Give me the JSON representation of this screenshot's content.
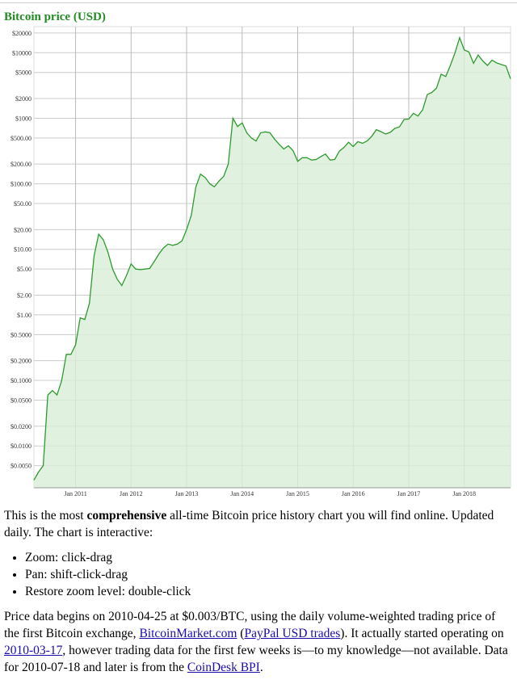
{
  "chart_data": {
    "type": "area",
    "title": "Bitcoin price (USD)",
    "color": "#2e9b2e",
    "fill": "#d8eed8",
    "log_scale": true,
    "grid": true,
    "x": [
      "2010-04",
      "2010-05",
      "2010-06",
      "2010-07",
      "2010-08",
      "2010-09",
      "2010-10",
      "2010-11",
      "2010-12",
      "2011-01",
      "2011-02",
      "2011-03",
      "2011-04",
      "2011-05",
      "2011-06",
      "2011-07",
      "2011-08",
      "2011-09",
      "2011-10",
      "2011-11",
      "2011-12",
      "2012-01",
      "2012-02",
      "2012-03",
      "2012-04",
      "2012-05",
      "2012-06",
      "2012-07",
      "2012-08",
      "2012-09",
      "2012-10",
      "2012-11",
      "2012-12",
      "2013-01",
      "2013-02",
      "2013-03",
      "2013-04",
      "2013-05",
      "2013-06",
      "2013-07",
      "2013-08",
      "2013-09",
      "2013-10",
      "2013-11",
      "2013-12",
      "2014-01",
      "2014-02",
      "2014-03",
      "2014-04",
      "2014-05",
      "2014-06",
      "2014-07",
      "2014-08",
      "2014-09",
      "2014-10",
      "2014-11",
      "2014-12",
      "2015-01",
      "2015-02",
      "2015-03",
      "2015-04",
      "2015-05",
      "2015-06",
      "2015-07",
      "2015-08",
      "2015-09",
      "2015-10",
      "2015-11",
      "2015-12",
      "2016-01",
      "2016-02",
      "2016-03",
      "2016-04",
      "2016-05",
      "2016-06",
      "2016-07",
      "2016-08",
      "2016-09",
      "2016-10",
      "2016-11",
      "2016-12",
      "2017-01",
      "2017-02",
      "2017-03",
      "2017-04",
      "2017-05",
      "2017-06",
      "2017-07",
      "2017-08",
      "2017-09",
      "2017-10",
      "2017-11",
      "2017-12",
      "2018-01",
      "2018-02",
      "2018-03",
      "2018-04",
      "2018-05",
      "2018-06",
      "2018-07",
      "2018-08",
      "2018-09",
      "2018-10",
      "2018-11"
    ],
    "values": [
      0.003,
      0.004,
      0.005,
      0.06,
      0.07,
      0.06,
      0.1,
      0.25,
      0.25,
      0.35,
      0.9,
      0.85,
      1.5,
      8,
      17,
      14,
      9,
      5,
      3.5,
      2.8,
      4,
      6,
      5,
      4.9,
      5,
      5.1,
      6.5,
      8.5,
      10.5,
      12,
      11.5,
      12,
      13.5,
      20,
      33,
      90,
      140,
      125,
      100,
      90,
      110,
      130,
      200,
      1000,
      750,
      850,
      600,
      500,
      450,
      600,
      620,
      600,
      480,
      400,
      340,
      380,
      320,
      220,
      250,
      250,
      230,
      235,
      260,
      285,
      230,
      235,
      315,
      360,
      430,
      370,
      440,
      415,
      450,
      530,
      670,
      625,
      575,
      610,
      700,
      740,
      960,
      970,
      1190,
      1080,
      1350,
      2300,
      2480,
      2880,
      4700,
      4340,
      6400,
      10000,
      17000,
      11000,
      10300,
      6900,
      9200,
      7500,
      6400,
      7700,
      7000,
      6600,
      6300,
      4000
    ],
    "xlim": [
      "2010-04",
      "2018-11"
    ],
    "xticks": [
      {
        "value": "2011-01",
        "label": "Jan 2011"
      },
      {
        "value": "2012-01",
        "label": "Jan 2012"
      },
      {
        "value": "2013-01",
        "label": "Jan 2013"
      },
      {
        "value": "2014-01",
        "label": "Jan 2014"
      },
      {
        "value": "2015-01",
        "label": "Jan 2015"
      },
      {
        "value": "2016-01",
        "label": "Jan 2016"
      },
      {
        "value": "2017-01",
        "label": "Jan 2017"
      },
      {
        "value": "2018-01",
        "label": "Jan 2018"
      }
    ],
    "ylim": [
      0.0023,
      25000
    ],
    "yticks": [
      {
        "value": 20000,
        "label": "$20000"
      },
      {
        "value": 10000,
        "label": "$10000"
      },
      {
        "value": 5000,
        "label": "$5000"
      },
      {
        "value": 2000,
        "label": "$2000"
      },
      {
        "value": 1000,
        "label": "$1000"
      },
      {
        "value": 500,
        "label": "$500.00"
      },
      {
        "value": 200,
        "label": "$200.00"
      },
      {
        "value": 100,
        "label": "$100.00"
      },
      {
        "value": 50,
        "label": "$50.00"
      },
      {
        "value": 20,
        "label": "$20.00"
      },
      {
        "value": 10,
        "label": "$10.00"
      },
      {
        "value": 5,
        "label": "$5.00"
      },
      {
        "value": 2,
        "label": "$2.00"
      },
      {
        "value": 1,
        "label": "$1.00"
      },
      {
        "value": 0.5,
        "label": "$0.5000"
      },
      {
        "value": 0.2,
        "label": "$0.2000"
      },
      {
        "value": 0.1,
        "label": "$0.1000"
      },
      {
        "value": 0.05,
        "label": "$0.0500"
      },
      {
        "value": 0.02,
        "label": "$0.0200"
      },
      {
        "value": 0.01,
        "label": "$0.0100"
      },
      {
        "value": 0.005,
        "label": "$0.0050"
      }
    ]
  },
  "intro": {
    "before": "This is the most ",
    "bold": "comprehensive",
    "after": " all-time Bitcoin price history chart you will find online. Updated daily. The chart is interactive:"
  },
  "list": [
    "Zoom: click-drag",
    "Pan: shift-click-drag",
    "Restore zoom level: double-click"
  ],
  "note": [
    "Price data begins on 2010-04-25 at $0.003/BTC, using the daily volume-weighted trading price of the first Bitcoin exchange, ",
    "BitcoinMarket.com",
    " (",
    "PayPal USD trades",
    "). It actually started operating on ",
    "2010-03-17",
    ", however trading data for the first few weeks is—to my knowledge—not available. Data for 2010-07-18 and later is from the ",
    "CoinDesk BPI",
    "."
  ]
}
